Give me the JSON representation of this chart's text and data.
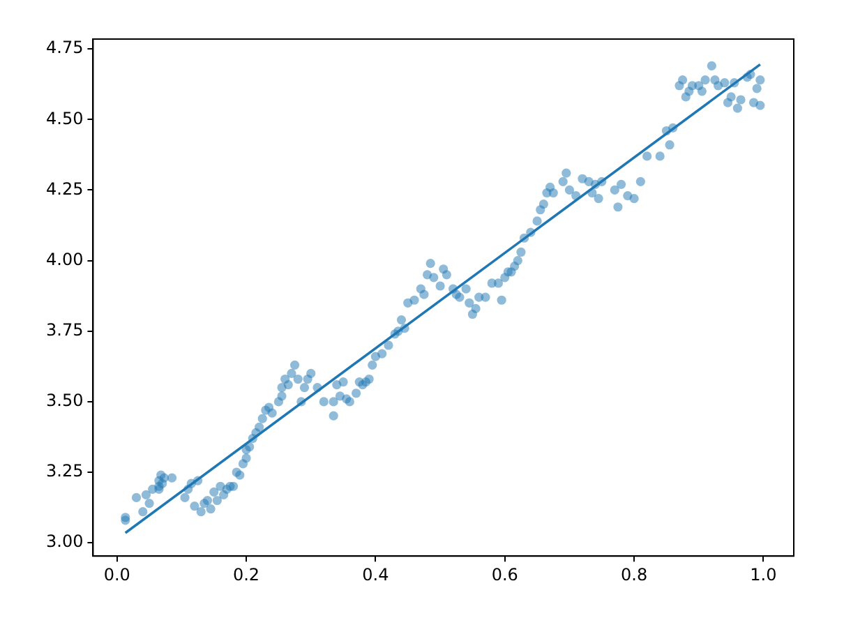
{
  "chart_data": {
    "type": "scatter",
    "marker": "circle",
    "grid": false,
    "legend": false,
    "xlim": [
      -0.037,
      1.047
    ],
    "ylim": [
      2.953,
      4.785
    ],
    "xticks": [
      {
        "value": 0,
        "label": "0.0"
      },
      {
        "value": 0.2,
        "label": "0.2"
      },
      {
        "value": 0.4,
        "label": "0.4"
      },
      {
        "value": 0.6,
        "label": "0.6"
      },
      {
        "value": 0.8,
        "label": "0.8"
      },
      {
        "value": 1,
        "label": "1.0"
      }
    ],
    "yticks": [
      {
        "value": 3,
        "label": "3.00"
      },
      {
        "value": 3.25,
        "label": "3.25"
      },
      {
        "value": 3.5,
        "label": "3.50"
      },
      {
        "value": 3.75,
        "label": "3.75"
      },
      {
        "value": 4,
        "label": "4.00"
      },
      {
        "value": 4.25,
        "label": "4.25"
      },
      {
        "value": 4.5,
        "label": "4.50"
      },
      {
        "value": 4.75,
        "label": "4.75"
      }
    ],
    "series": [
      {
        "type": "scatter",
        "color": "#1f77b4",
        "x": [
          0.013,
          0.013,
          0.03,
          0.04,
          0.045,
          0.05,
          0.055,
          0.065,
          0.065,
          0.068,
          0.07,
          0.073,
          0.085,
          0.065,
          0.105,
          0.11,
          0.115,
          0.12,
          0.125,
          0.13,
          0.135,
          0.14,
          0.145,
          0.15,
          0.155,
          0.16,
          0.165,
          0.17,
          0.175,
          0.18,
          0.185,
          0.19,
          0.195,
          0.2,
          0.2,
          0.205,
          0.21,
          0.215,
          0.22,
          0.225,
          0.23,
          0.235,
          0.24,
          0.25,
          0.255,
          0.255,
          0.26,
          0.265,
          0.27,
          0.275,
          0.28,
          0.285,
          0.29,
          0.295,
          0.3,
          0.31,
          0.32,
          0.335,
          0.335,
          0.34,
          0.345,
          0.35,
          0.355,
          0.36,
          0.37,
          0.375,
          0.38,
          0.385,
          0.39,
          0.395,
          0.4,
          0.41,
          0.42,
          0.43,
          0.435,
          0.44,
          0.445,
          0.45,
          0.46,
          0.47,
          0.475,
          0.48,
          0.485,
          0.49,
          0.5,
          0.505,
          0.51,
          0.52,
          0.525,
          0.53,
          0.54,
          0.545,
          0.55,
          0.555,
          0.56,
          0.57,
          0.58,
          0.59,
          0.595,
          0.6,
          0.605,
          0.61,
          0.615,
          0.62,
          0.625,
          0.63,
          0.64,
          0.65,
          0.655,
          0.66,
          0.665,
          0.67,
          0.675,
          0.69,
          0.695,
          0.7,
          0.71,
          0.72,
          0.73,
          0.735,
          0.74,
          0.745,
          0.75,
          0.77,
          0.775,
          0.78,
          0.79,
          0.8,
          0.81,
          0.82,
          0.84,
          0.85,
          0.855,
          0.86,
          0.87,
          0.875,
          0.88,
          0.885,
          0.89,
          0.9,
          0.905,
          0.91,
          0.92,
          0.925,
          0.93,
          0.94,
          0.945,
          0.95,
          0.955,
          0.96,
          0.965,
          0.975,
          0.98,
          0.985,
          0.99,
          0.995,
          0.995
        ],
        "values": [
          3.08,
          3.09,
          3.16,
          3.11,
          3.17,
          3.14,
          3.19,
          3.2,
          3.22,
          3.24,
          3.21,
          3.23,
          3.23,
          3.19,
          3.16,
          3.19,
          3.21,
          3.13,
          3.22,
          3.11,
          3.14,
          3.15,
          3.12,
          3.18,
          3.15,
          3.2,
          3.17,
          3.19,
          3.2,
          3.2,
          3.25,
          3.24,
          3.28,
          3.3,
          3.33,
          3.34,
          3.37,
          3.39,
          3.41,
          3.44,
          3.47,
          3.48,
          3.46,
          3.5,
          3.52,
          3.55,
          3.58,
          3.56,
          3.6,
          3.63,
          3.58,
          3.5,
          3.55,
          3.58,
          3.6,
          3.55,
          3.5,
          3.45,
          3.5,
          3.56,
          3.52,
          3.57,
          3.51,
          3.5,
          3.53,
          3.57,
          3.56,
          3.57,
          3.58,
          3.63,
          3.66,
          3.67,
          3.7,
          3.74,
          3.75,
          3.79,
          3.76,
          3.85,
          3.86,
          3.9,
          3.88,
          3.95,
          3.99,
          3.94,
          3.91,
          3.97,
          3.95,
          3.9,
          3.88,
          3.87,
          3.9,
          3.85,
          3.81,
          3.83,
          3.87,
          3.87,
          3.92,
          3.92,
          3.86,
          3.94,
          3.96,
          3.96,
          3.98,
          4.0,
          4.03,
          4.08,
          4.1,
          4.14,
          4.18,
          4.2,
          4.24,
          4.26,
          4.24,
          4.28,
          4.31,
          4.25,
          4.23,
          4.29,
          4.28,
          4.24,
          4.27,
          4.22,
          4.28,
          4.25,
          4.19,
          4.27,
          4.23,
          4.22,
          4.28,
          4.37,
          4.37,
          4.46,
          4.41,
          4.47,
          4.62,
          4.64,
          4.58,
          4.6,
          4.62,
          4.62,
          4.6,
          4.64,
          4.69,
          4.64,
          4.62,
          4.63,
          4.56,
          4.58,
          4.63,
          4.54,
          4.57,
          4.65,
          4.66,
          4.56,
          4.61,
          4.55,
          4.64
        ]
      },
      {
        "type": "line",
        "color": "#1f77b4",
        "marker": "none",
        "x": [
          0.013,
          0.995
        ],
        "values": [
          3.035,
          4.695
        ]
      }
    ]
  }
}
